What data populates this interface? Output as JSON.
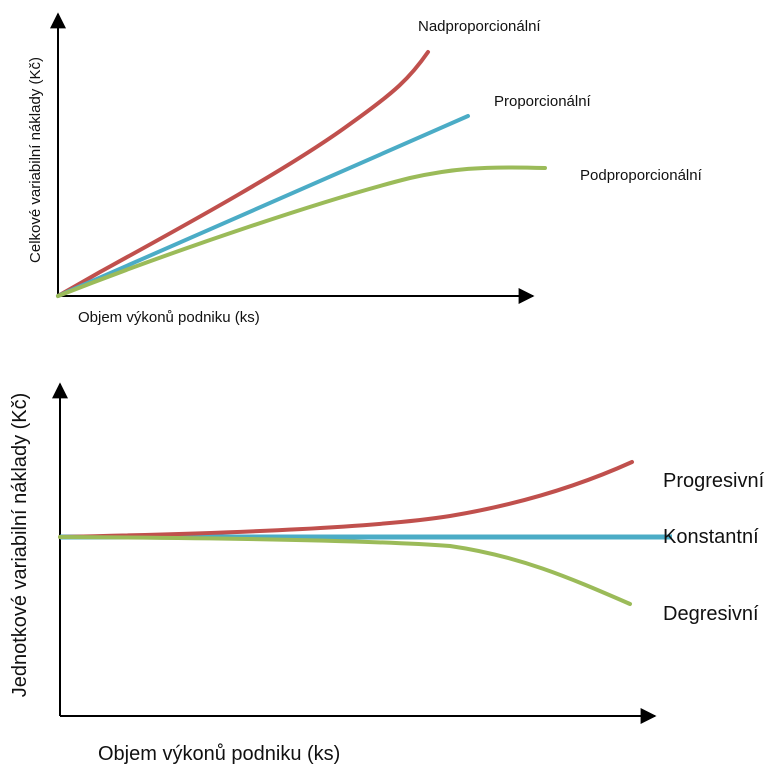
{
  "chart_data": [
    {
      "type": "line",
      "title": "",
      "xlabel": "Objem výkonů podniku (ks)",
      "ylabel": "Celkové variabilní náklady (Kč)",
      "grid": false,
      "series": [
        {
          "name": "Nadproporcionální",
          "color": "#C0504D",
          "x": [
            0,
            10,
            20,
            30,
            40,
            50,
            60,
            70,
            75,
            80
          ],
          "y": [
            0,
            11,
            23,
            35,
            48,
            62,
            77,
            95,
            110,
            135
          ]
        },
        {
          "name": "Proporcionální",
          "color": "#4BACC6",
          "x": [
            0,
            45,
            90
          ],
          "y": [
            0,
            47,
            95
          ]
        },
        {
          "name": "Podproporcionální",
          "color": "#9BBB59",
          "x": [
            0,
            20,
            40,
            60,
            70,
            80,
            90,
            105
          ],
          "y": [
            0,
            19,
            36,
            50,
            55,
            58,
            58,
            58
          ]
        }
      ]
    },
    {
      "type": "line",
      "title": "",
      "xlabel": "Objem výkonů podniku (ks)",
      "ylabel": "Jednotkové variabilní náklady (Kč)",
      "grid": false,
      "series": [
        {
          "name": "Progresivní",
          "color": "#C0504D",
          "x": [
            0,
            20,
            40,
            60,
            70,
            80,
            90,
            100
          ],
          "y": [
            100,
            101,
            102,
            104,
            107,
            111,
            117,
            124
          ]
        },
        {
          "name": "Konstantní",
          "color": "#4BACC6",
          "x": [
            0,
            100
          ],
          "y": [
            100,
            100
          ]
        },
        {
          "name": "Degresivní",
          "color": "#9BBB59",
          "x": [
            0,
            20,
            40,
            60,
            70,
            80,
            90,
            100
          ],
          "y": [
            100,
            100,
            99,
            97,
            94,
            89,
            83,
            77
          ]
        }
      ]
    }
  ]
}
